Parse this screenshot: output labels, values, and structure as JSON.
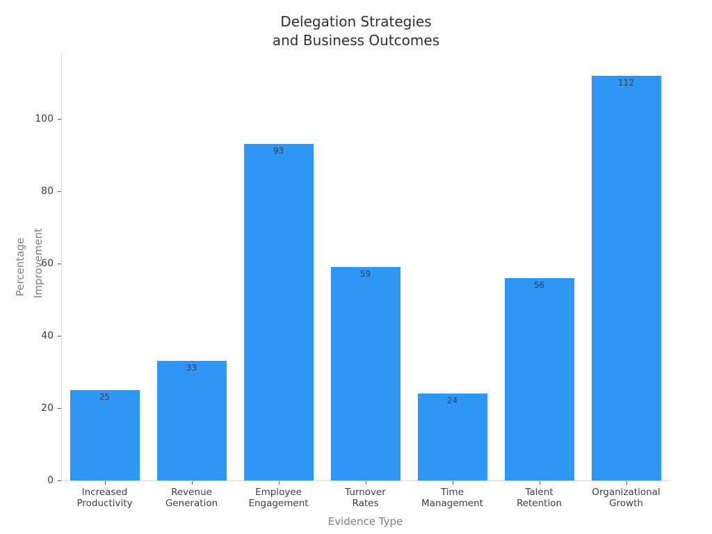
{
  "title": {
    "line1": "Delegation Strategies",
    "line2": "and Business Outcomes"
  },
  "chart_data": {
    "type": "bar",
    "title": "Delegation Strategies and Business Outcomes",
    "xlabel": "Evidence Type",
    "ylabel": "Percentage Improvement",
    "ylabel_lines": [
      "Percentage",
      "Improvement"
    ],
    "categories": [
      "Increased Productivity",
      "Revenue Generation",
      "Employee Engagement",
      "Turnover Rates",
      "Time Management",
      "Talent Retention",
      "Organizational Growth"
    ],
    "category_lines": [
      [
        "Increased",
        "Productivity"
      ],
      [
        "Revenue",
        "Generation"
      ],
      [
        "Employee",
        "Engagement"
      ],
      [
        "Turnover",
        "Rates"
      ],
      [
        "Time",
        "Management"
      ],
      [
        "Talent",
        "Retention"
      ],
      [
        "Organizational",
        "Growth"
      ]
    ],
    "values": [
      25,
      33,
      93,
      59,
      24,
      56,
      112
    ],
    "value_labels": [
      "25",
      "33",
      "93",
      "59",
      "24",
      "56",
      "112"
    ],
    "yticks": [
      0,
      20,
      40,
      60,
      80,
      100
    ],
    "ylim": [
      0,
      118
    ],
    "grid": false,
    "legend": null,
    "bar_color": "#2e96f5",
    "colors": {
      "background": "#ffffff",
      "title": "#2e2e2e",
      "tick_label": "#3c3c3c",
      "axis_title": "#7f7f7f",
      "value_label": "#333c45",
      "spine": "#d6d6d6",
      "tick_mark": "#555555"
    }
  }
}
